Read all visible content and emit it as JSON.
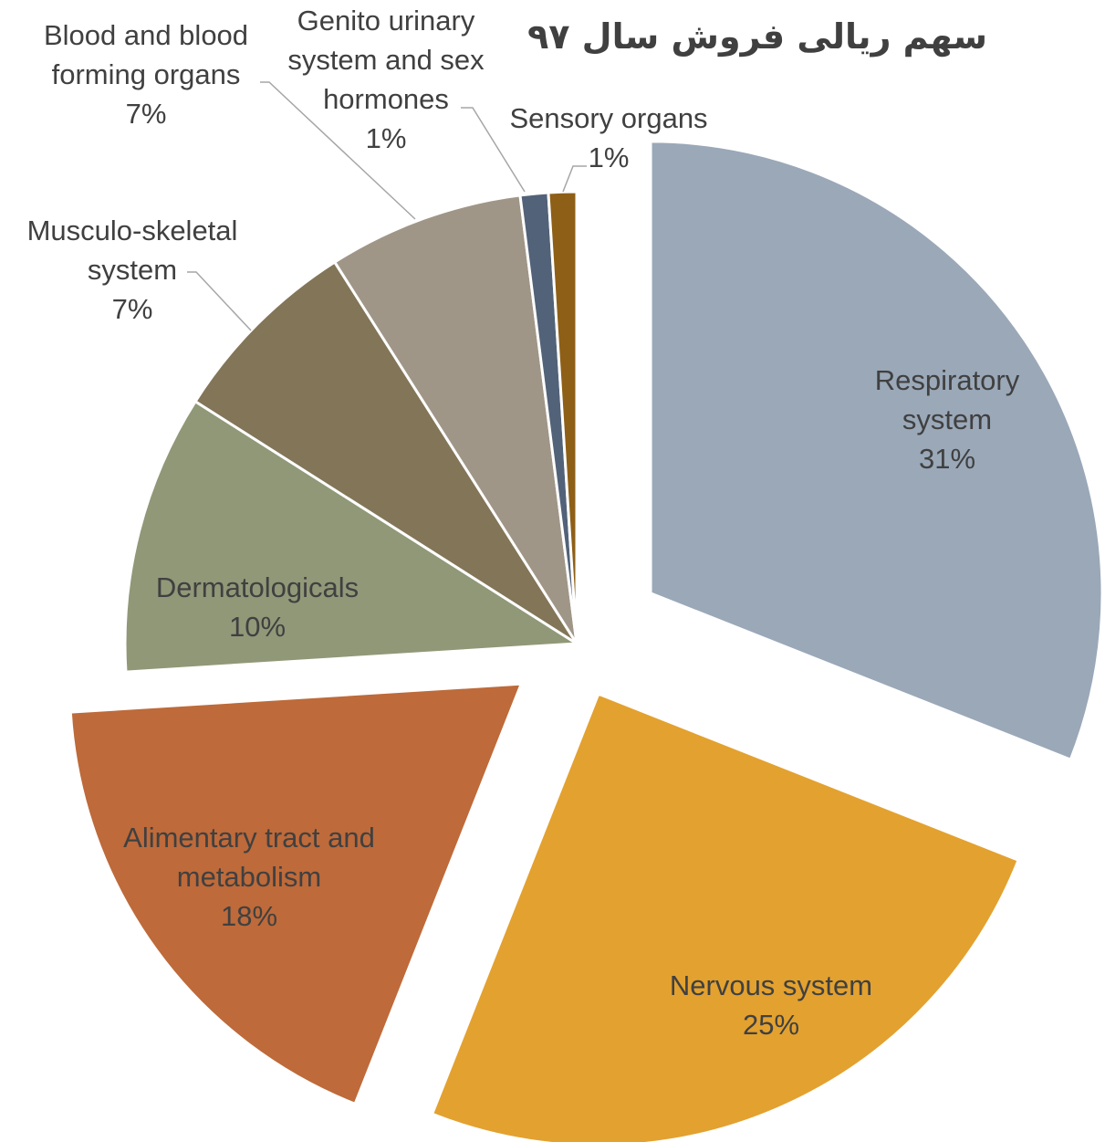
{
  "chart_data": {
    "type": "pie",
    "title": "سهم ریالی فروش سال ۹۷",
    "categories": [
      "Respiratory system",
      "Nervous system",
      "Alimentary tract and metabolism",
      "Dermatologicals",
      "Musculo-skeletal system",
      "Blood and blood forming organs",
      "Genito urinary system and sex hormones",
      "Sensory organs"
    ],
    "values": [
      31,
      25,
      18,
      10,
      7,
      7,
      1,
      1
    ],
    "value_labels": [
      "31%",
      "25%",
      "18%",
      "10%",
      "7%",
      "7%",
      "1%",
      "1%"
    ],
    "colors": [
      "#9aa8b8",
      "#e3a12f",
      "#be6a3a",
      "#909878",
      "#837558",
      "#a09688",
      "#526278",
      "#8e5f16"
    ]
  }
}
